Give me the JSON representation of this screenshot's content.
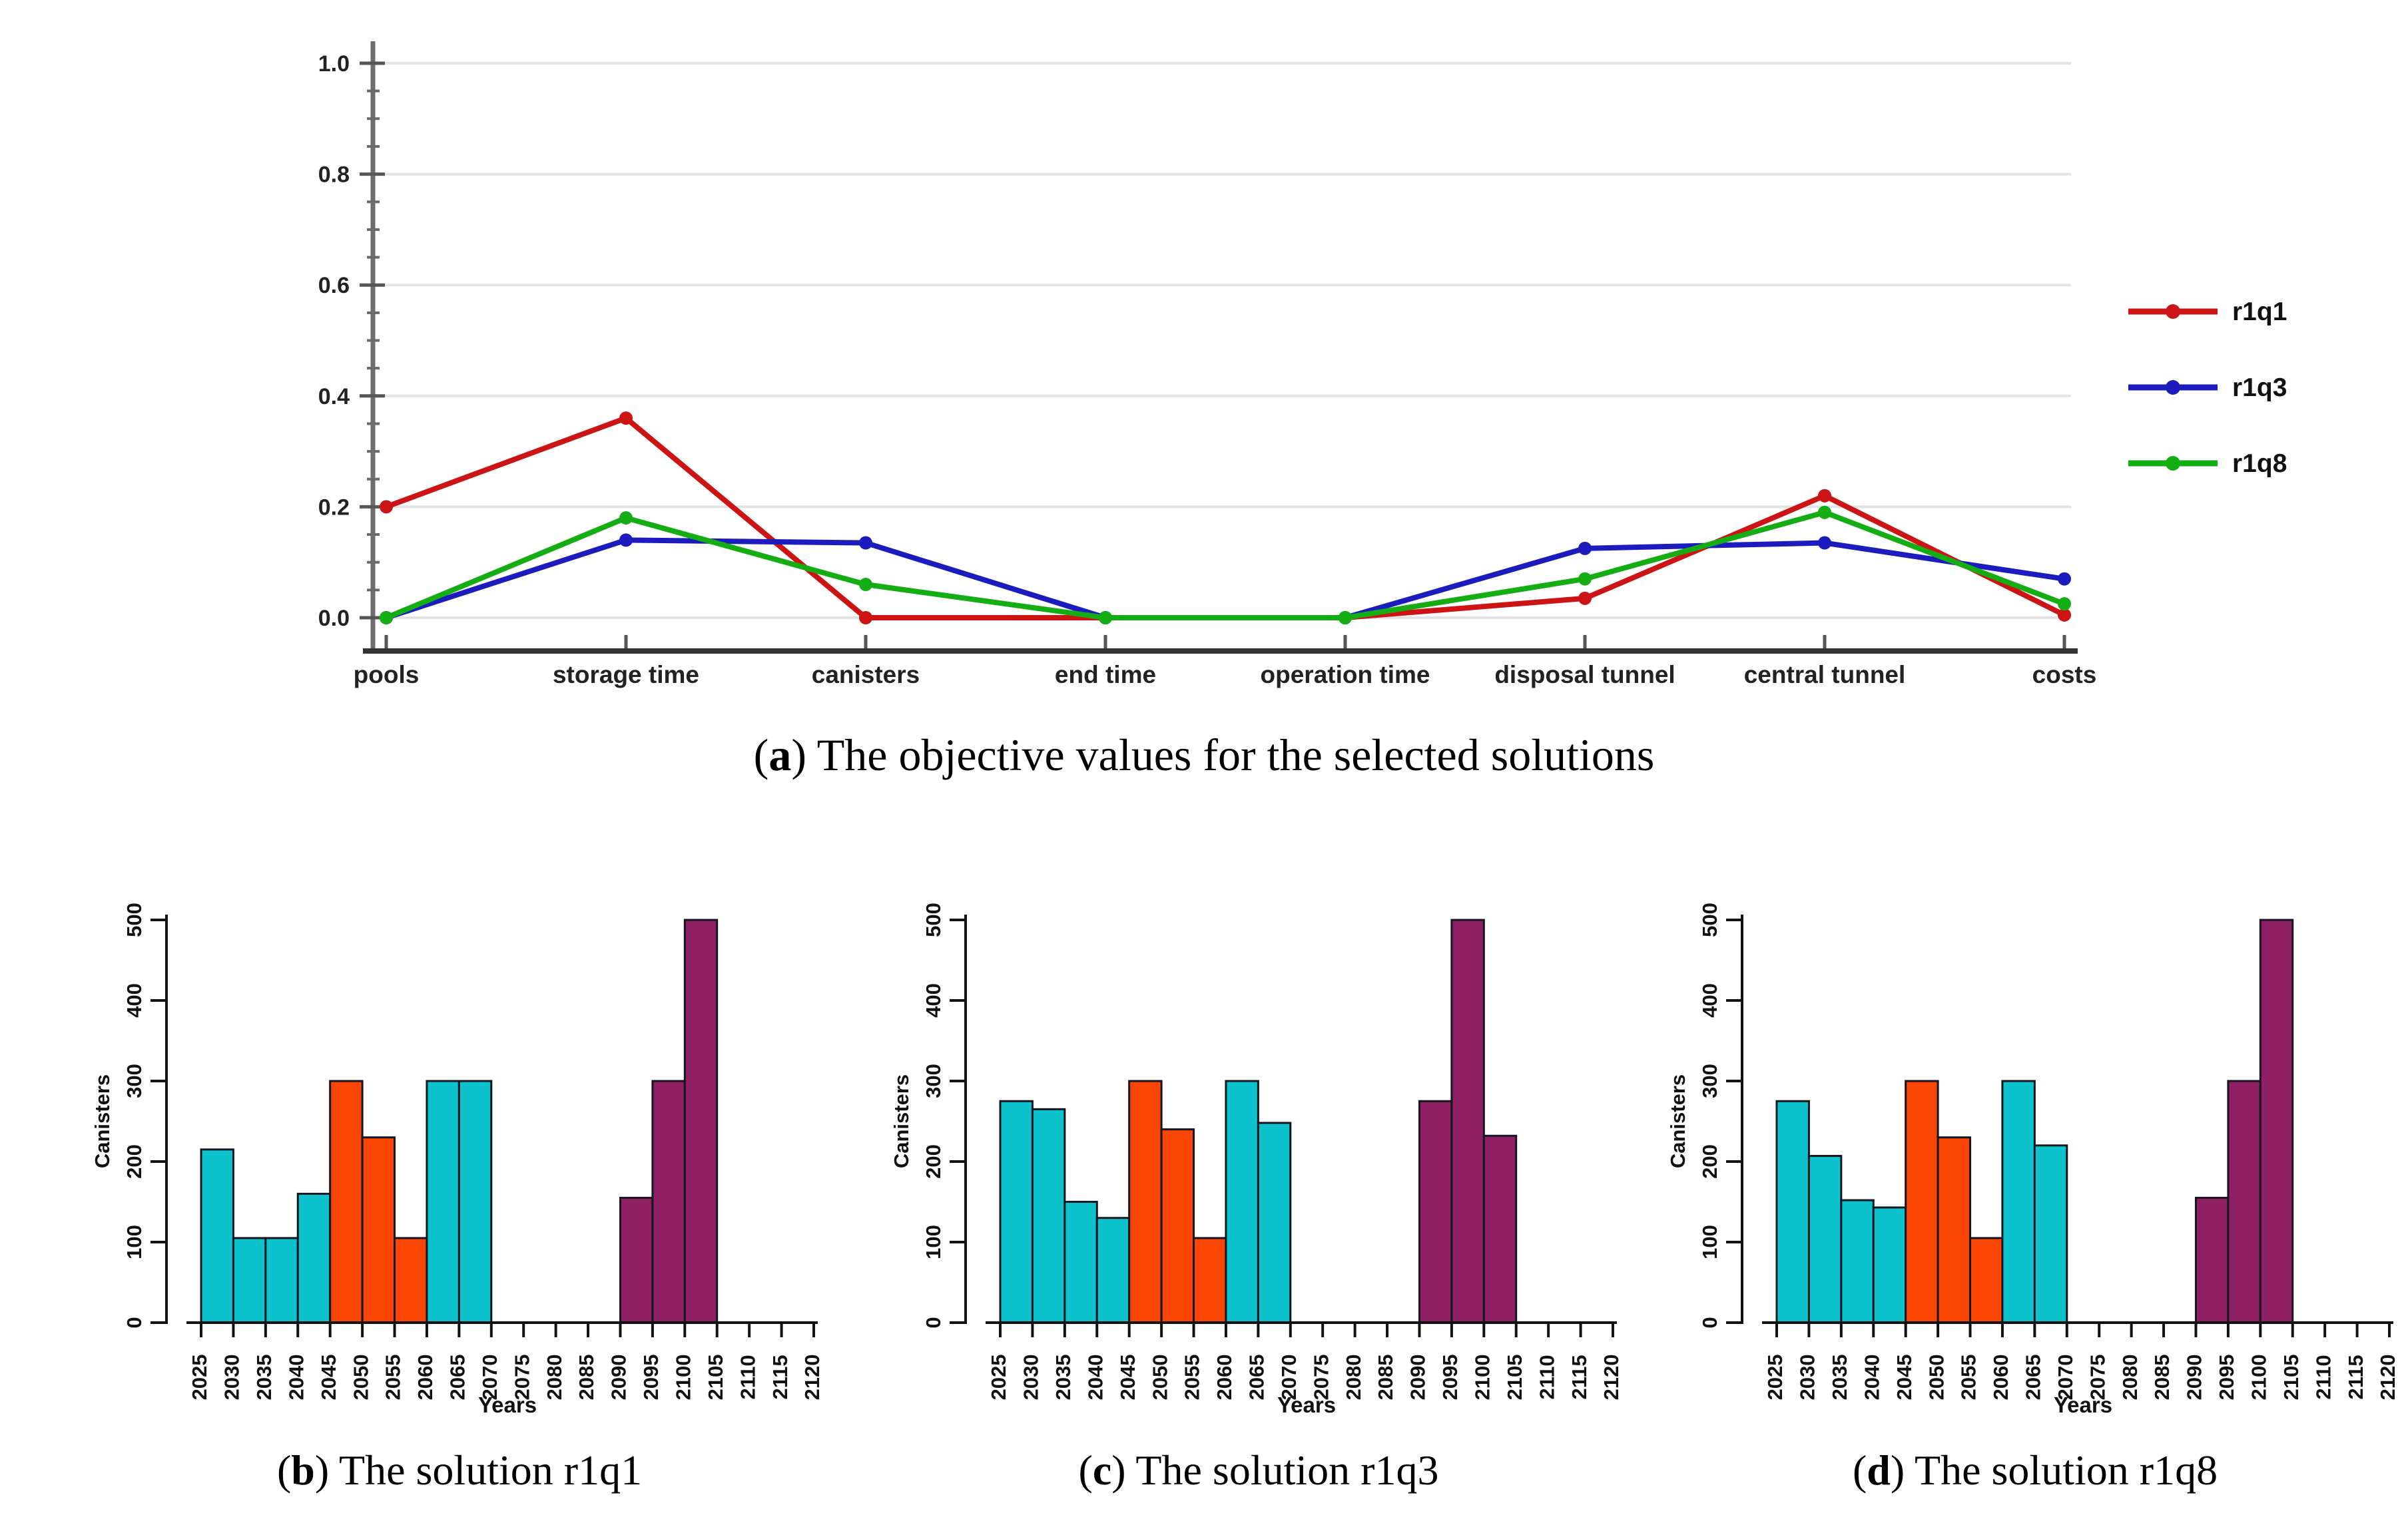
{
  "palette": {
    "red": "#cc1414",
    "blue": "#1c1cbe",
    "green": "#14ad14",
    "cyan": "#0cc3cd",
    "orange": "#fb4503",
    "purple": "#8e1f63",
    "grid": "#e3e3e3",
    "axis_gray": "#6e6e6e",
    "axis_dark": "#333333",
    "bar_axis": "#111111",
    "bar_stroke": "#161620",
    "text": "#1a1a1a"
  },
  "captions": {
    "a": {
      "parts": [
        "(",
        "a",
        ") The objective values for the selected solutions"
      ]
    },
    "b": {
      "parts": [
        "(",
        "b",
        ") The solution r1q1"
      ]
    },
    "c": {
      "parts": [
        "(",
        "c",
        ") The solution r1q3"
      ]
    },
    "d": {
      "parts": [
        "(",
        "d",
        ") The solution r1q8"
      ]
    }
  },
  "chart_data": [
    {
      "id": "objectives",
      "type": "line",
      "categories": [
        "pools",
        "storage time",
        "canisters",
        "end time",
        "operation time",
        "disposal tunnel",
        "central tunnel",
        "costs"
      ],
      "ylim": [
        0.0,
        1.0
      ],
      "yticks": [
        0.0,
        0.2,
        0.4,
        0.6,
        0.8,
        1.0
      ],
      "ytick_labels": [
        "0.0",
        "0.2",
        "0.4",
        "0.6",
        "0.8",
        "1.0"
      ],
      "minor_tick_step": 0.05,
      "grid": true,
      "legend_position": "right",
      "legend": [
        "r1q1",
        "r1q3",
        "r1q8"
      ],
      "series": [
        {
          "name": "r1q1",
          "color": "red",
          "values": [
            0.2,
            0.36,
            0.0,
            0.0,
            0.0,
            0.035,
            0.22,
            0.005
          ]
        },
        {
          "name": "r1q3",
          "color": "blue",
          "values": [
            0.0,
            0.14,
            0.135,
            0.0,
            0.0,
            0.125,
            0.135,
            0.07
          ]
        },
        {
          "name": "r1q8",
          "color": "green",
          "values": [
            0.0,
            0.18,
            0.06,
            0.0,
            0.0,
            0.07,
            0.19,
            0.025
          ]
        }
      ]
    },
    {
      "id": "hist_r1q1",
      "type": "bar",
      "xlabel": "Years",
      "ylabel": "Canisters",
      "ylim": [
        0,
        500
      ],
      "yticks": [
        0,
        100,
        200,
        300,
        400,
        500
      ],
      "ytick_labels": [
        "0",
        "100",
        "200",
        "300",
        "400",
        "500"
      ],
      "xtick_labels": [
        "2025",
        "2030",
        "2035",
        "2040",
        "2045",
        "2050",
        "2055",
        "2060",
        "2065",
        "2070",
        "2075",
        "2080",
        "2085",
        "2090",
        "2095",
        "2100",
        "2105",
        "2110",
        "2115",
        "2120"
      ],
      "x_start": 2025,
      "bin_width": 5,
      "bars": [
        {
          "start": 2025,
          "value": 215,
          "color": "cyan"
        },
        {
          "start": 2030,
          "value": 105,
          "color": "cyan"
        },
        {
          "start": 2035,
          "value": 105,
          "color": "cyan"
        },
        {
          "start": 2040,
          "value": 160,
          "color": "cyan"
        },
        {
          "start": 2045,
          "value": 300,
          "color": "orange"
        },
        {
          "start": 2050,
          "value": 230,
          "color": "orange"
        },
        {
          "start": 2055,
          "value": 105,
          "color": "orange"
        },
        {
          "start": 2060,
          "value": 300,
          "color": "cyan"
        },
        {
          "start": 2065,
          "value": 300,
          "color": "cyan"
        },
        {
          "start": 2090,
          "value": 155,
          "color": "purple"
        },
        {
          "start": 2095,
          "value": 300,
          "color": "purple"
        },
        {
          "start": 2100,
          "value": 500,
          "color": "purple"
        }
      ]
    },
    {
      "id": "hist_r1q3",
      "type": "bar",
      "xlabel": "Years",
      "ylabel": "Canisters",
      "ylim": [
        0,
        500
      ],
      "yticks": [
        0,
        100,
        200,
        300,
        400,
        500
      ],
      "ytick_labels": [
        "0",
        "100",
        "200",
        "300",
        "400",
        "500"
      ],
      "xtick_labels": [
        "2025",
        "2030",
        "2035",
        "2040",
        "2045",
        "2050",
        "2055",
        "2060",
        "2065",
        "2070",
        "2075",
        "2080",
        "2085",
        "2090",
        "2095",
        "2100",
        "2105",
        "2110",
        "2115",
        "2120"
      ],
      "x_start": 2025,
      "bin_width": 5,
      "bars": [
        {
          "start": 2025,
          "value": 275,
          "color": "cyan"
        },
        {
          "start": 2030,
          "value": 265,
          "color": "cyan"
        },
        {
          "start": 2035,
          "value": 150,
          "color": "cyan"
        },
        {
          "start": 2040,
          "value": 130,
          "color": "cyan"
        },
        {
          "start": 2045,
          "value": 300,
          "color": "orange"
        },
        {
          "start": 2050,
          "value": 240,
          "color": "orange"
        },
        {
          "start": 2055,
          "value": 105,
          "color": "orange"
        },
        {
          "start": 2060,
          "value": 300,
          "color": "cyan"
        },
        {
          "start": 2065,
          "value": 248,
          "color": "cyan"
        },
        {
          "start": 2090,
          "value": 275,
          "color": "purple"
        },
        {
          "start": 2095,
          "value": 500,
          "color": "purple"
        },
        {
          "start": 2100,
          "value": 232,
          "color": "purple"
        }
      ]
    },
    {
      "id": "hist_r1q8",
      "type": "bar",
      "xlabel": "Years",
      "ylabel": "Canisters",
      "ylim": [
        0,
        500
      ],
      "yticks": [
        0,
        100,
        200,
        300,
        400,
        500
      ],
      "ytick_labels": [
        "0",
        "100",
        "200",
        "300",
        "400",
        "500"
      ],
      "xtick_labels": [
        "2025",
        "2030",
        "2035",
        "2040",
        "2045",
        "2050",
        "2055",
        "2060",
        "2065",
        "2070",
        "2075",
        "2080",
        "2085",
        "2090",
        "2095",
        "2100",
        "2105",
        "2110",
        "2115",
        "2120"
      ],
      "x_start": 2025,
      "bin_width": 5,
      "bars": [
        {
          "start": 2025,
          "value": 275,
          "color": "cyan"
        },
        {
          "start": 2030,
          "value": 207,
          "color": "cyan"
        },
        {
          "start": 2035,
          "value": 152,
          "color": "cyan"
        },
        {
          "start": 2040,
          "value": 143,
          "color": "cyan"
        },
        {
          "start": 2045,
          "value": 300,
          "color": "orange"
        },
        {
          "start": 2050,
          "value": 230,
          "color": "orange"
        },
        {
          "start": 2055,
          "value": 105,
          "color": "orange"
        },
        {
          "start": 2060,
          "value": 300,
          "color": "cyan"
        },
        {
          "start": 2065,
          "value": 220,
          "color": "cyan"
        },
        {
          "start": 2090,
          "value": 155,
          "color": "purple"
        },
        {
          "start": 2095,
          "value": 300,
          "color": "purple"
        },
        {
          "start": 2100,
          "value": 500,
          "color": "purple"
        }
      ]
    }
  ]
}
